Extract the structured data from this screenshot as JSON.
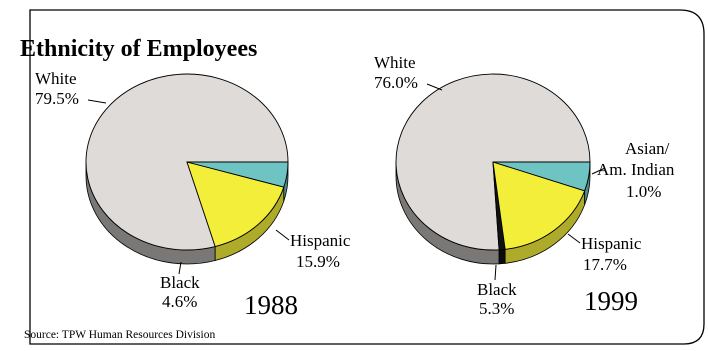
{
  "title": "Ethnicity of Employees",
  "source": "Source: TPW Human Resources Division",
  "colors": {
    "White": "#dedbd8",
    "Hispanic": "#f2ee3a",
    "Black": "#6ec3c3",
    "Asian/Am. Indian": "#111111"
  },
  "chart_data": [
    {
      "type": "pie",
      "year": "1988",
      "slices": [
        {
          "name": "White",
          "label": "White",
          "value": 79.5,
          "value_text": "79.5%"
        },
        {
          "name": "Hispanic",
          "label": "Hispanic",
          "value": 15.9,
          "value_text": "15.9%"
        },
        {
          "name": "Black",
          "label": "Black",
          "value": 4.6,
          "value_text": "4.6%"
        }
      ]
    },
    {
      "type": "pie",
      "year": "1999",
      "slices": [
        {
          "name": "White",
          "label": "White",
          "value": 76.0,
          "value_text": "76.0%"
        },
        {
          "name": "Asian/Am. Indian",
          "label": "Asian/",
          "label2": "Am. Indian",
          "value": 1.0,
          "value_text": "1.0%"
        },
        {
          "name": "Hispanic",
          "label": "Hispanic",
          "value": 17.7,
          "value_text": "17.7%"
        },
        {
          "name": "Black",
          "label": "Black",
          "value": 5.3,
          "value_text": "5.3%"
        }
      ]
    }
  ]
}
